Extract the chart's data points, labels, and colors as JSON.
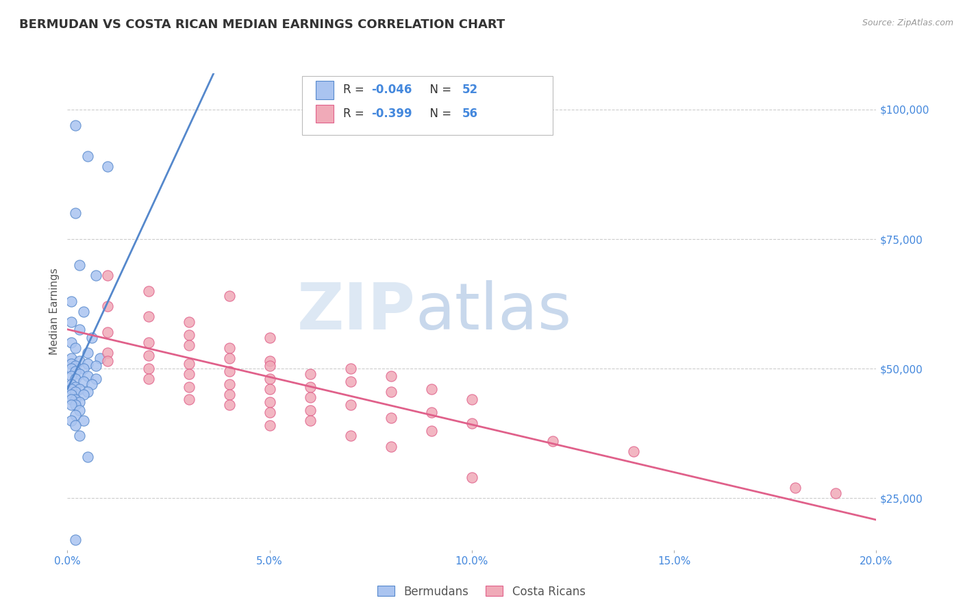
{
  "title": "BERMUDAN VS COSTA RICAN MEDIAN EARNINGS CORRELATION CHART",
  "source": "Source: ZipAtlas.com",
  "ylabel": "Median Earnings",
  "xlim": [
    0.0,
    0.2
  ],
  "ylim": [
    15000,
    107000
  ],
  "yticks": [
    25000,
    50000,
    75000,
    100000
  ],
  "ytick_labels": [
    "$25,000",
    "$50,000",
    "$75,000",
    "$100,000"
  ],
  "xticks": [
    0.0,
    0.05,
    0.1,
    0.15,
    0.2
  ],
  "xtick_labels": [
    "0.0%",
    "5.0%",
    "10.0%",
    "15.0%",
    "20.0%"
  ],
  "bermudans_color": "#aac4f0",
  "costa_ricans_color": "#f0aab8",
  "trendline_bermudans_color": "#5588cc",
  "trendline_costa_ricans_color": "#e0608a",
  "background_color": "#ffffff",
  "grid_color": "#cccccc",
  "title_color": "#333333",
  "axis_color": "#4488dd",
  "watermark_zip_color": "#d8e4f0",
  "watermark_atlas_color": "#c8d8e8",
  "bermudans_scatter": [
    [
      0.002,
      97000
    ],
    [
      0.005,
      91000
    ],
    [
      0.01,
      89000
    ],
    [
      0.002,
      80000
    ],
    [
      0.003,
      70000
    ],
    [
      0.007,
      68000
    ],
    [
      0.001,
      63000
    ],
    [
      0.004,
      61000
    ],
    [
      0.001,
      59000
    ],
    [
      0.003,
      57500
    ],
    [
      0.006,
      56000
    ],
    [
      0.001,
      55000
    ],
    [
      0.002,
      54000
    ],
    [
      0.005,
      53000
    ],
    [
      0.008,
      52000
    ],
    [
      0.001,
      52000
    ],
    [
      0.003,
      51500
    ],
    [
      0.005,
      51000
    ],
    [
      0.007,
      50500
    ],
    [
      0.001,
      51000
    ],
    [
      0.002,
      50500
    ],
    [
      0.004,
      50000
    ],
    [
      0.001,
      50000
    ],
    [
      0.002,
      49500
    ],
    [
      0.003,
      49000
    ],
    [
      0.005,
      48500
    ],
    [
      0.007,
      48000
    ],
    [
      0.001,
      48500
    ],
    [
      0.002,
      48000
    ],
    [
      0.004,
      47500
    ],
    [
      0.006,
      47000
    ],
    [
      0.001,
      47000
    ],
    [
      0.002,
      46500
    ],
    [
      0.003,
      46000
    ],
    [
      0.005,
      45500
    ],
    [
      0.001,
      46000
    ],
    [
      0.002,
      45500
    ],
    [
      0.004,
      45000
    ],
    [
      0.001,
      45000
    ],
    [
      0.002,
      44000
    ],
    [
      0.003,
      43500
    ],
    [
      0.001,
      44000
    ],
    [
      0.002,
      43000
    ],
    [
      0.001,
      43000
    ],
    [
      0.003,
      42000
    ],
    [
      0.002,
      41000
    ],
    [
      0.004,
      40000
    ],
    [
      0.001,
      40000
    ],
    [
      0.002,
      39000
    ],
    [
      0.003,
      37000
    ],
    [
      0.005,
      33000
    ],
    [
      0.002,
      17000
    ]
  ],
  "costa_ricans_scatter": [
    [
      0.01,
      68000
    ],
    [
      0.02,
      65000
    ],
    [
      0.04,
      64000
    ],
    [
      0.01,
      62000
    ],
    [
      0.02,
      60000
    ],
    [
      0.03,
      59000
    ],
    [
      0.01,
      57000
    ],
    [
      0.03,
      56500
    ],
    [
      0.05,
      56000
    ],
    [
      0.02,
      55000
    ],
    [
      0.03,
      54500
    ],
    [
      0.04,
      54000
    ],
    [
      0.01,
      53000
    ],
    [
      0.02,
      52500
    ],
    [
      0.04,
      52000
    ],
    [
      0.05,
      51500
    ],
    [
      0.01,
      51500
    ],
    [
      0.03,
      51000
    ],
    [
      0.05,
      50500
    ],
    [
      0.07,
      50000
    ],
    [
      0.02,
      50000
    ],
    [
      0.04,
      49500
    ],
    [
      0.06,
      49000
    ],
    [
      0.08,
      48500
    ],
    [
      0.03,
      49000
    ],
    [
      0.05,
      48000
    ],
    [
      0.07,
      47500
    ],
    [
      0.02,
      48000
    ],
    [
      0.04,
      47000
    ],
    [
      0.06,
      46500
    ],
    [
      0.09,
      46000
    ],
    [
      0.03,
      46500
    ],
    [
      0.05,
      46000
    ],
    [
      0.08,
      45500
    ],
    [
      0.04,
      45000
    ],
    [
      0.06,
      44500
    ],
    [
      0.1,
      44000
    ],
    [
      0.03,
      44000
    ],
    [
      0.05,
      43500
    ],
    [
      0.07,
      43000
    ],
    [
      0.04,
      43000
    ],
    [
      0.06,
      42000
    ],
    [
      0.09,
      41500
    ],
    [
      0.05,
      41500
    ],
    [
      0.08,
      40500
    ],
    [
      0.06,
      40000
    ],
    [
      0.1,
      39500
    ],
    [
      0.05,
      39000
    ],
    [
      0.09,
      38000
    ],
    [
      0.07,
      37000
    ],
    [
      0.12,
      36000
    ],
    [
      0.08,
      35000
    ],
    [
      0.14,
      34000
    ],
    [
      0.1,
      29000
    ],
    [
      0.18,
      27000
    ],
    [
      0.19,
      26000
    ]
  ]
}
